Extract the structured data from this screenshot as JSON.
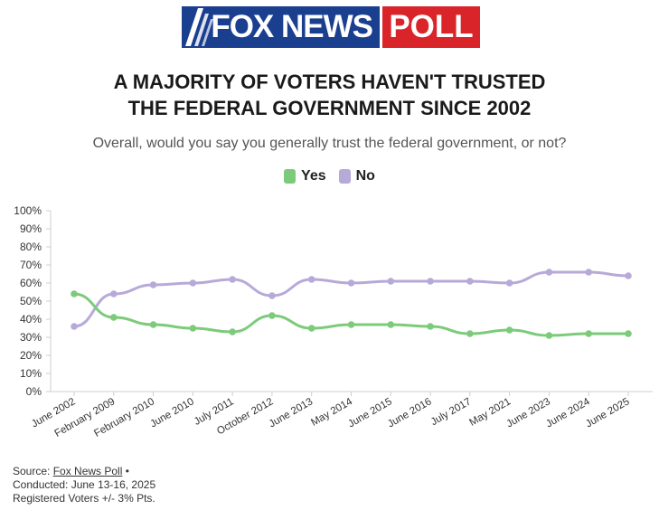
{
  "logo": {
    "brand": "FOX NEWS",
    "poll": "POLL"
  },
  "header": {
    "title_line1": "A MAJORITY OF VOTERS HAVEN'T TRUSTED",
    "title_line2": "THE FEDERAL GOVERNMENT SINCE 2002",
    "subtitle": "Overall, would you say you generally trust the federal government, or not?"
  },
  "legend": [
    {
      "label": "Yes",
      "color": "#7ccb7a"
    },
    {
      "label": "No",
      "color": "#b7a9d8"
    }
  ],
  "chart_data": {
    "type": "line",
    "categories": [
      "June 2002",
      "February 2009",
      "February 2010",
      "June 2010",
      "July 2011",
      "October 2012",
      "June 2013",
      "May 2014",
      "June 2015",
      "June 2016",
      "July 2017",
      "May 2021",
      "June 2023",
      "June 2024",
      "June 2025"
    ],
    "series": [
      {
        "name": "Yes",
        "color": "#7ccb7a",
        "values": [
          54,
          41,
          37,
          35,
          33,
          42,
          35,
          37,
          37,
          36,
          32,
          34,
          31,
          32,
          32
        ]
      },
      {
        "name": "No",
        "color": "#b7a9d8",
        "values": [
          36,
          54,
          59,
          60,
          62,
          53,
          62,
          60,
          61,
          61,
          61,
          60,
          66,
          66,
          64
        ]
      }
    ],
    "ylim": [
      0,
      100
    ],
    "yticks": [
      "0%",
      "10%",
      "20%",
      "30%",
      "40%",
      "50%",
      "60%",
      "70%",
      "80%",
      "90%",
      "100%"
    ],
    "grid": false,
    "legend_position": "top-center"
  },
  "source": {
    "prefix": "Source: ",
    "link": "Fox News Poll",
    "bullet": " •",
    "conducted": "Conducted: June 13-16, 2025",
    "sample": "Registered Voters +/- 3% Pts."
  }
}
